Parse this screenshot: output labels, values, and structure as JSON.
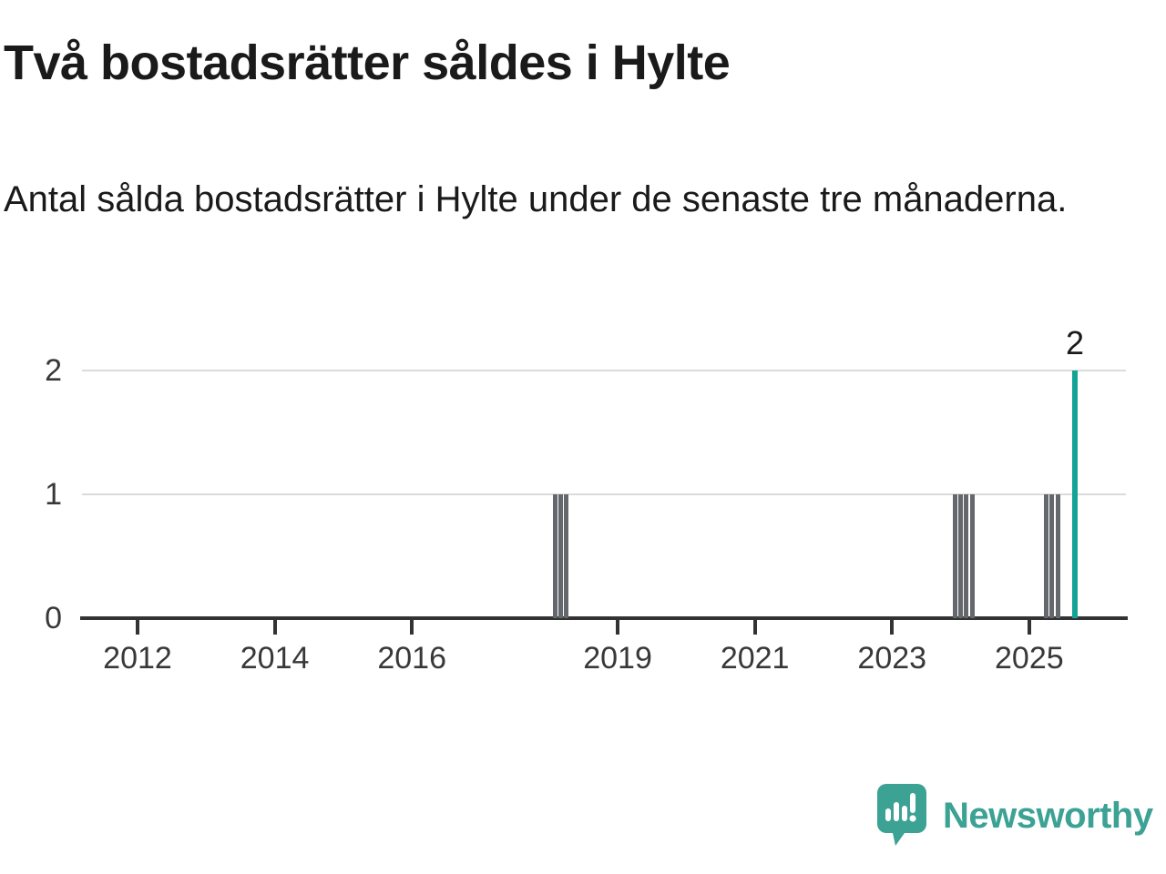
{
  "header": {
    "title": "Två bostadsrätter såldes i Hylte",
    "subtitle": "Antal sålda bostadsrätter i Hylte under de senaste tre månaderna."
  },
  "chart_data": {
    "type": "bar",
    "title": "Två bostadsrätter såldes i Hylte",
    "subtitle": "Antal sålda bostadsrätter i Hylte under de senaste tre månaderna.",
    "xlabel": "",
    "ylabel": "",
    "x_range": [
      2011.19,
      2026.41
    ],
    "ylim": [
      0,
      2
    ],
    "yticks": [
      0,
      1,
      2
    ],
    "xticks": [
      2012,
      2014,
      2016,
      2019,
      2021,
      2023,
      2025
    ],
    "grid": "horizontal",
    "legend": "none",
    "bars": [
      {
        "month": "2018-02",
        "value": 1
      },
      {
        "month": "2018-03",
        "value": 1
      },
      {
        "month": "2018-04",
        "value": 1
      },
      {
        "month": "2023-12",
        "value": 1
      },
      {
        "month": "2024-01",
        "value": 1
      },
      {
        "month": "2024-02",
        "value": 1
      },
      {
        "month": "2024-03",
        "value": 1
      },
      {
        "month": "2025-04",
        "value": 1
      },
      {
        "month": "2025-05",
        "value": 1
      },
      {
        "month": "2025-06",
        "value": 1
      },
      {
        "month": "2025-09",
        "value": 2,
        "highlight": true,
        "label": "2"
      }
    ]
  },
  "colors": {
    "bar_gray": "#64676c",
    "bar_highlight": "#14a396",
    "grid": "#dbdbdb",
    "axis": "#333333",
    "tick_text": "#383838",
    "text": "#1a1a1a",
    "logo": "#3ba294"
  },
  "logo": {
    "text": "Newsworthy",
    "icon": "newsworthy-speech-bubble-bar-chart-icon"
  }
}
